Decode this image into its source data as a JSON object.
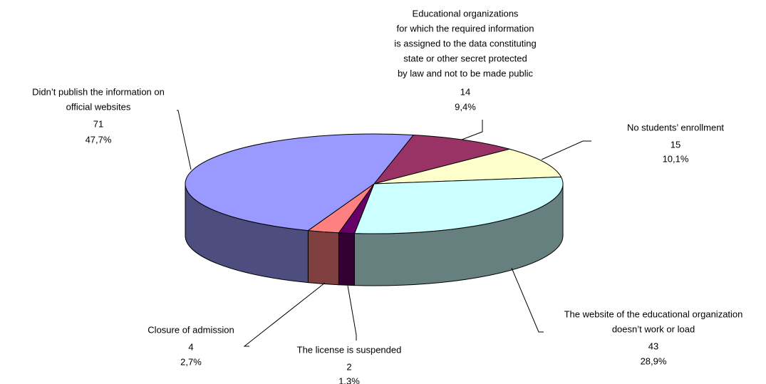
{
  "chart_data": {
    "type": "pie",
    "categories": [
      [
        "Educational organizations",
        "for which the required information",
        "is assigned to the data constituting",
        "state or other secret protected",
        "by law and not to be made public"
      ],
      [
        "No students’ enrollment"
      ],
      [
        "The website of the educational organization",
        "doesn’t work or load"
      ],
      [
        "The license is suspended"
      ],
      [
        "Closure of admission"
      ],
      [
        "Didn’t publish the information on",
        "official websites"
      ]
    ],
    "values": [
      14,
      15,
      43,
      2,
      4,
      71
    ],
    "shares": [
      9.4,
      10.1,
      28.9,
      1.3,
      2.7,
      47.7
    ],
    "share_labels": [
      "9,4%",
      "10,1%",
      "28,9%",
      "1.3%",
      "2,7%",
      "47,7%"
    ],
    "colors": [
      "#993366",
      "#ffffcc",
      "#ccffff",
      "#660066",
      "#ff8080",
      "#9999ff"
    ]
  }
}
